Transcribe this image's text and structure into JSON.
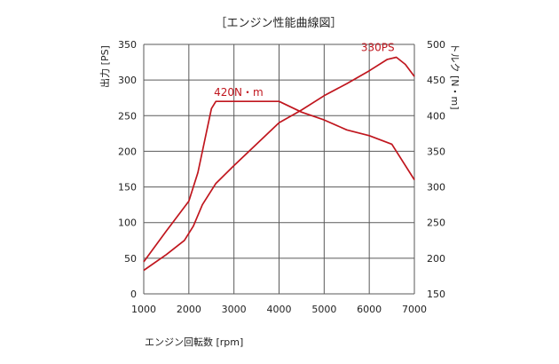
{
  "chart_data": {
    "type": "line",
    "title": "［エンジン性能曲線図］",
    "xlabel": "エンジン回転数 [rpm]",
    "ylabel_left": "出力 [PS]",
    "ylabel_right": "トルク [N・m]",
    "xlim": [
      1000,
      7000
    ],
    "ylim_left": [
      0,
      350
    ],
    "ylim_right": [
      150,
      500
    ],
    "x_ticks": [
      1000,
      2000,
      3000,
      4000,
      5000,
      6000,
      7000
    ],
    "y_ticks_left": [
      0,
      50,
      100,
      150,
      200,
      250,
      300,
      350
    ],
    "y_ticks_right": [
      150,
      200,
      250,
      300,
      350,
      400,
      450,
      500
    ],
    "grid": true,
    "line_color": "#c0161e",
    "series": [
      {
        "name": "330PS",
        "axis": "left",
        "points": [
          [
            1000,
            33
          ],
          [
            1500,
            55
          ],
          [
            1900,
            75
          ],
          [
            2100,
            95
          ],
          [
            2300,
            125
          ],
          [
            2600,
            155
          ],
          [
            3000,
            180
          ],
          [
            3500,
            210
          ],
          [
            4000,
            240
          ],
          [
            4500,
            258
          ],
          [
            5000,
            278
          ],
          [
            5500,
            295
          ],
          [
            6000,
            313
          ],
          [
            6400,
            329
          ],
          [
            6600,
            332
          ],
          [
            6800,
            322
          ],
          [
            7000,
            305
          ]
        ]
      },
      {
        "name": "420N・m",
        "axis": "right",
        "points": [
          [
            1000,
            195
          ],
          [
            1500,
            238
          ],
          [
            2000,
            280
          ],
          [
            2200,
            320
          ],
          [
            2500,
            410
          ],
          [
            2600,
            420
          ],
          [
            4000,
            420
          ],
          [
            4500,
            405
          ],
          [
            5000,
            394
          ],
          [
            5500,
            380
          ],
          [
            6000,
            372
          ],
          [
            6500,
            360
          ],
          [
            7000,
            310
          ]
        ]
      }
    ]
  }
}
